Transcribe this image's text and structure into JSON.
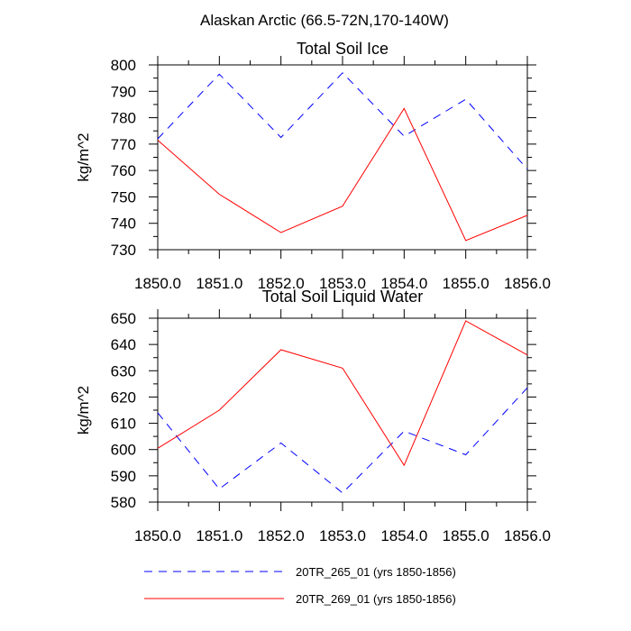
{
  "suptitle": "Alaskan Arctic (66.5-72N,170-140W)",
  "colors": {
    "series_1": "#0000ff",
    "series_2": "#ff0000"
  },
  "legend": [
    {
      "label": "20TR_265_01 (yrs 1850-1856)",
      "color": "#0000ff",
      "style": "dashed"
    },
    {
      "label": "20TR_269_01 (yrs 1850-1856)",
      "color": "#ff0000",
      "style": "solid"
    }
  ],
  "chart_data": [
    {
      "type": "line",
      "title": "Total Soil Ice",
      "xlabel": "",
      "ylabel": "kg/m^2",
      "xlim": [
        1850,
        1856
      ],
      "ylim": [
        730,
        800
      ],
      "xticks": [
        "1850.0",
        "1851.0",
        "1852.0",
        "1853.0",
        "1854.0",
        "1855.0",
        "1856.0"
      ],
      "yticks": [
        "730",
        "740",
        "750",
        "760",
        "770",
        "780",
        "790",
        "800"
      ],
      "grid": false,
      "x": [
        1850,
        1851,
        1852,
        1853,
        1854,
        1855,
        1856
      ],
      "series": [
        {
          "name": "20TR_265_01 (yrs 1850-1856)",
          "values": [
            772,
            796.5,
            772.5,
            797,
            773,
            787,
            760.5
          ]
        },
        {
          "name": "20TR_269_01 (yrs 1850-1856)",
          "values": [
            771.5,
            751,
            736.5,
            746.5,
            783.5,
            733.5,
            743
          ]
        }
      ]
    },
    {
      "type": "line",
      "title": "Total Soil Liquid Water",
      "xlabel": "",
      "ylabel": "kg/m^2",
      "xlim": [
        1850,
        1856
      ],
      "ylim": [
        580,
        650
      ],
      "xticks": [
        "1850.0",
        "1851.0",
        "1852.0",
        "1853.0",
        "1854.0",
        "1855.0",
        "1856.0"
      ],
      "yticks": [
        "580",
        "590",
        "600",
        "610",
        "620",
        "630",
        "640",
        "650"
      ],
      "grid": false,
      "x": [
        1850,
        1851,
        1852,
        1853,
        1854,
        1855,
        1856
      ],
      "series": [
        {
          "name": "20TR_265_01 (yrs 1850-1856)",
          "values": [
            614,
            585,
            602.5,
            583.5,
            607,
            598,
            623.5
          ]
        },
        {
          "name": "20TR_269_01 (yrs 1850-1856)",
          "values": [
            600.5,
            615,
            638,
            631,
            594,
            649,
            636
          ]
        }
      ]
    }
  ]
}
